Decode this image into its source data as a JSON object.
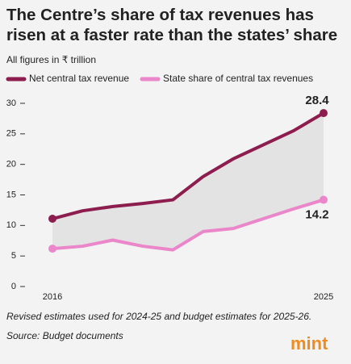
{
  "chart_data": {
    "type": "line",
    "title": "The Centre’s share of tax revenues has risen at a faster rate than the states’ share",
    "subtitle": "All figures in ₹ trillion",
    "x": [
      2016,
      2017,
      2018,
      2019,
      2020,
      2021,
      2022,
      2023,
      2024,
      2025
    ],
    "xlim": [
      2016,
      2025
    ],
    "xticks": [
      2016,
      2025
    ],
    "ylim": [
      0,
      30
    ],
    "yticks": [
      0,
      5,
      10,
      15,
      20,
      25,
      30
    ],
    "series": [
      {
        "name": "Net central tax revenue",
        "color": "#8c1d4e",
        "values": [
          11.1,
          12.4,
          13.1,
          13.6,
          14.2,
          18.0,
          20.9,
          23.2,
          25.5,
          28.4
        ]
      },
      {
        "name": "State share of central tax revenues",
        "color": "#ea86c9",
        "values": [
          6.2,
          6.6,
          7.6,
          6.6,
          6.0,
          9.0,
          9.5,
          11.1,
          12.7,
          14.2
        ]
      }
    ],
    "fill_between_color": "#e3e3e3",
    "notes": [
      "Revised estimates used for 2024-25 and budget estimates for 2025-26.",
      "Source: Budget documents"
    ],
    "logo": "mint"
  }
}
